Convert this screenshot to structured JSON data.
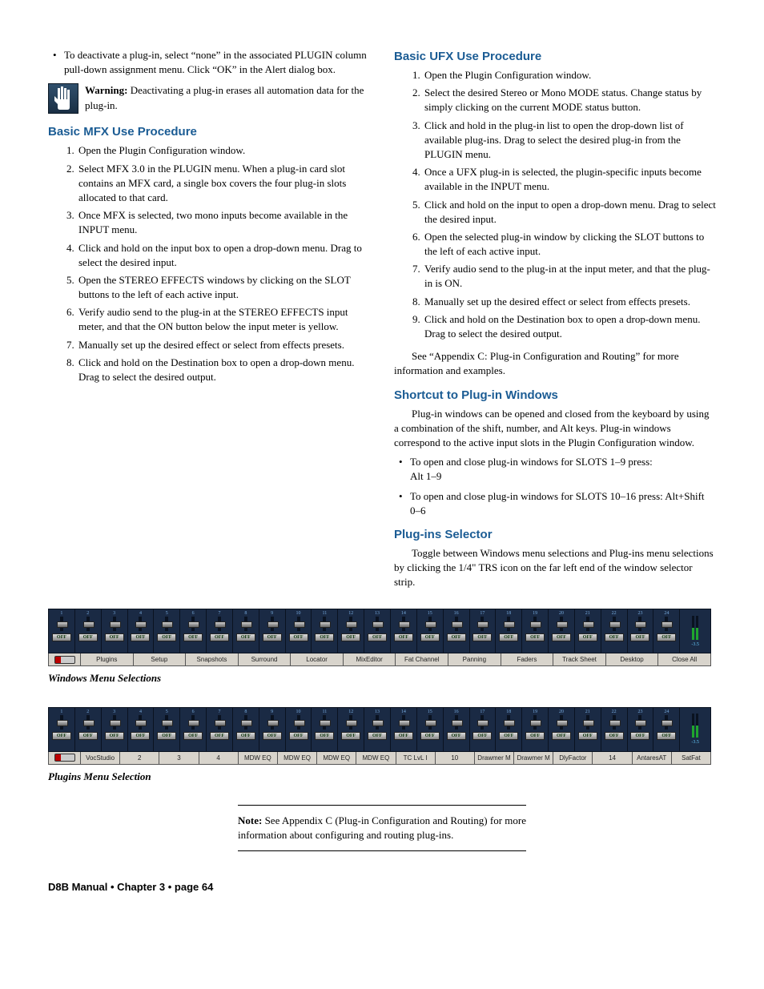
{
  "leftCol": {
    "bullet1": "To deactivate a plug-in, select “none” in the associated PLUGIN column pull-down assignment menu. Click “OK” in the Alert dialog box.",
    "warningLabel": "Warning:",
    "warningText": " Deactivating a plug-in erases all automation data for the plug-in.",
    "mfxHeading": "Basic MFX Use Procedure",
    "mfx": [
      "Open the Plugin Configuration window.",
      "Select MFX 3.0 in the PLUGIN menu. When a plug-in card slot contains an MFX card, a single box covers the four plug-in slots allocated to that card.",
      "Once MFX is selected, two mono inputs become available in the INPUT menu.",
      "Click and hold on the input box to open a drop-down menu. Drag to select the desired input.",
      "Open the STEREO EFFECTS windows by clicking on the SLOT buttons to the left of each active input.",
      "Verify audio send to the plug-in at the STEREO EFFECTS input meter, and that the ON button below the input meter is yellow.",
      "Manually set up the desired effect or select from effects presets.",
      "Click and hold on the Destination box to open a drop-down menu. Drag to select the desired output."
    ]
  },
  "rightCol": {
    "ufxHeading": "Basic UFX Use Procedure",
    "ufx": [
      "Open the Plugin Configuration window.",
      "Select the desired Stereo or Mono MODE status. Change status by simply clicking on the current MODE status button.",
      "Click and hold in the plug-in list to open the drop-down list of available plug-ins. Drag to select the desired plug-in from the PLUGIN menu.",
      "Once a UFX plug-in is selected, the plugin-specific inputs become available in the INPUT menu.",
      "Click and hold on the input to open a drop-down menu. Drag to select the desired input.",
      "Open the selected plug-in window by clicking the SLOT buttons to the left of each active input.",
      "Verify audio send to the plug-in at the input meter, and that the plug-in is ON.",
      "Manually set up the desired effect or select from effects presets.",
      "Click and hold on the Destination box to open a drop-down menu. Drag to select the desired output."
    ],
    "appendixPara": "See “Appendix C: Plug-in Configuration and Routing” for more information and examples.",
    "shortcutHeading": "Shortcut to Plug-in Windows",
    "shortcutPara": "Plug-in windows can be opened and closed from the keyboard by using a combination of the shift, number, and Alt keys. Plug-in windows correspond to the active input slots in the Plugin Configuration window.",
    "shortcutBullets": [
      "To open and close plug-in windows for SLOTS 1–9 press:\nAlt 1–9",
      "To open and close plug-in windows for SLOTS 10–16 press: Alt+Shift 0–6"
    ],
    "selectorHeading": "Plug-ins Selector",
    "selectorPara": "Toggle between Windows menu selections and Plug-ins menu selections by clicking the 1/4\" TRS icon on the far left end of the window selector strip."
  },
  "channelCount": 24,
  "offLabel": "OFF",
  "meterValue": "-3.5",
  "windowsMenu": [
    "Plugins",
    "Setup",
    "Snapshots",
    "Surround",
    "Locator",
    "MixEditor",
    "Fat Channel",
    "Panning",
    "Faders",
    "Track Sheet",
    "Desktop",
    "Close All"
  ],
  "windowsCaption": "Windows Menu Selections",
  "pluginsMenu": [
    "VocStudio",
    "2",
    "3",
    "4",
    "MDW EQ",
    "MDW EQ",
    "MDW EQ",
    "MDW EQ",
    "TC LvL I",
    "10",
    "Drawmer M",
    "Drawmer M",
    "DlyFactor",
    "14",
    "AntaresAT",
    "SatFat"
  ],
  "pluginsCaption": "Plugins Menu Selection",
  "noteLabel": "Note:",
  "noteText": " See Appendix C (Plug-in Configuration and Routing) for more information about configuring and routing plug-ins.",
  "footer": "D8B Manual • Chapter 3 • page  64"
}
